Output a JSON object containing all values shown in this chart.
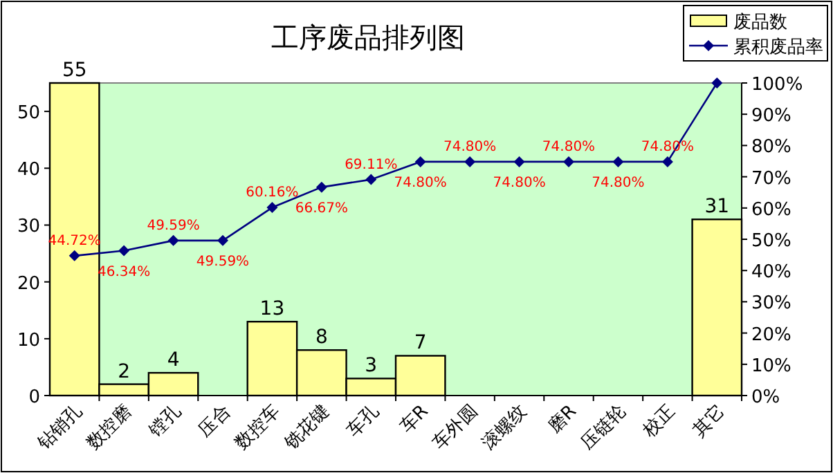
{
  "chart_data": {
    "type": "bar",
    "title": "工序废品排列图",
    "categories": [
      "钻销孔",
      "数控磨",
      "镗孔",
      "压合",
      "数控车",
      "铣花键",
      "车孔",
      "车R",
      "车外圆",
      "滚螺纹",
      "磨R",
      "压链轮",
      "校正",
      "其它"
    ],
    "series": [
      {
        "name": "废品数",
        "color": "#ffff99",
        "values": [
          55,
          2,
          4,
          0,
          13,
          8,
          3,
          7,
          0,
          0,
          0,
          0,
          0,
          31
        ],
        "value_labels": [
          "55",
          "2",
          "4",
          null,
          "13",
          "8",
          "3",
          "7",
          null,
          null,
          null,
          null,
          null,
          "31"
        ]
      },
      {
        "name": "累积废品率",
        "type": "line",
        "axis": "y2",
        "color": "#000080",
        "marker": "diamond",
        "values": [
          44.72,
          46.34,
          49.59,
          49.59,
          60.16,
          66.67,
          69.11,
          74.8,
          74.8,
          74.8,
          74.8,
          74.8,
          74.8,
          100
        ],
        "value_labels": [
          "44.72%",
          "46.34%",
          "49.59%",
          "49.59%",
          "60.16%",
          "66.67%",
          "69.11%",
          "74.80%",
          "74.80%",
          "74.80%",
          "74.80%",
          "74.80%",
          "74.80%",
          null
        ]
      }
    ],
    "ylim": [
      0,
      55
    ],
    "yticks": [
      0,
      10,
      20,
      30,
      40,
      50
    ],
    "y2lim": [
      0,
      100
    ],
    "y2ticks": [
      {
        "value": 0,
        "label": "0%"
      },
      {
        "value": 10,
        "label": "10%"
      },
      {
        "value": 20,
        "label": "20%"
      },
      {
        "value": 30,
        "label": "30%"
      },
      {
        "value": 40,
        "label": "40%"
      },
      {
        "value": 50,
        "label": "50%"
      },
      {
        "value": 60,
        "label": "60%"
      },
      {
        "value": 70,
        "label": "70%"
      },
      {
        "value": 80,
        "label": "80%"
      },
      {
        "value": 90,
        "label": "90%"
      },
      {
        "value": 100,
        "label": "100%"
      }
    ],
    "legend": "top right",
    "grid": false
  }
}
